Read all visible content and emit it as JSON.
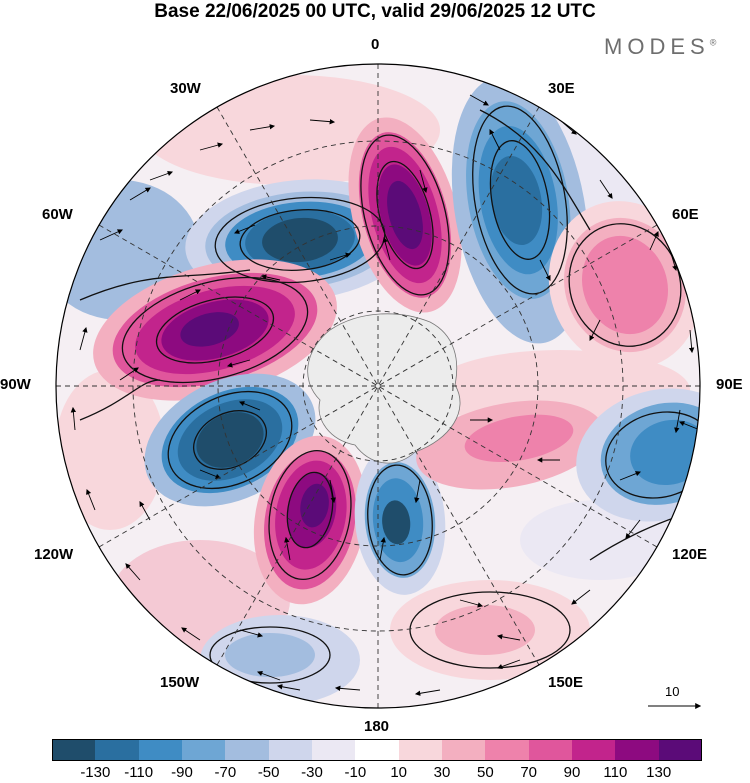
{
  "title": "Base 22/06/2025 00 UTC, valid 29/06/2025 12 UTC",
  "brand": "MODES",
  "brand_mark": "®",
  "longitude_labels": {
    "n0": "0",
    "e30": "30E",
    "e60": "60E",
    "e90": "90E",
    "e120": "120E",
    "e150": "150E",
    "s180": "180",
    "w150": "150W",
    "w120": "120W",
    "w90": "90W",
    "w60": "60W",
    "w30": "30W"
  },
  "vector_reference": "10",
  "colorbar": {
    "colors": [
      "#1f4d6b",
      "#2a6fa0",
      "#3f8cc4",
      "#6ea6d4",
      "#a3bddf",
      "#cfd6ec",
      "#ebe8f3",
      "#ffffff",
      "#f8d7dc",
      "#f3afc0",
      "#ee82ab",
      "#e0569c",
      "#c2248c",
      "#8d0a80",
      "#5b0b78"
    ],
    "ticks": [
      "-130",
      "-110",
      "-90",
      "-70",
      "-50",
      "-30",
      "-10",
      "10",
      "30",
      "50",
      "70",
      "90",
      "110",
      "130"
    ]
  },
  "map_colors": {
    "antarctica": "#ececec",
    "contour": "#111111",
    "grid": "#333333"
  }
}
